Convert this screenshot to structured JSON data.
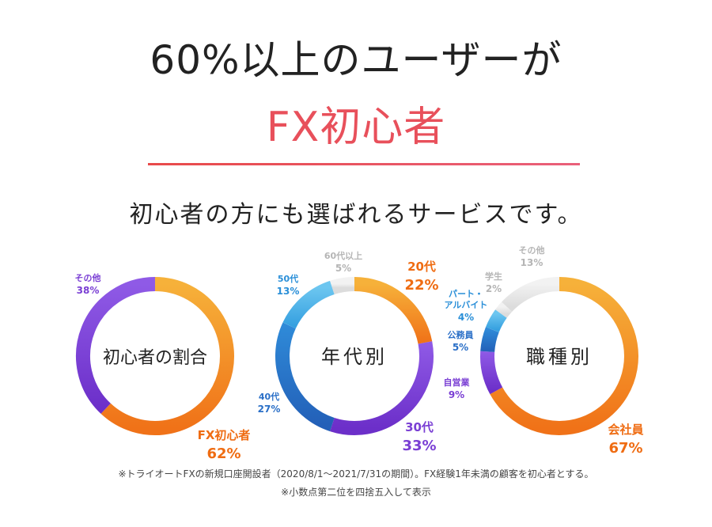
{
  "headline": {
    "line1": "60%以上のユーザーが",
    "line2": "FX初心者",
    "subtitle": "初心者の方にも選ばれるサービスです。"
  },
  "colors": {
    "accent_red": "#e8505b",
    "orange": "#f07b1c",
    "purple": "#7d3ed6",
    "blue": "#2a6fc7",
    "lightblue": "#3fa9e5",
    "lightgray": "#e5e5e5"
  },
  "chart_data": [
    {
      "type": "pie",
      "variant": "donut",
      "center_label": "初心者の割合",
      "slices": [
        {
          "label": "FX初心者",
          "value": 62,
          "display": "62%",
          "color": "orange"
        },
        {
          "label": "その他",
          "value": 38,
          "display": "38%",
          "color": "purple"
        }
      ]
    },
    {
      "type": "pie",
      "variant": "donut",
      "center_label": "年代別",
      "slices": [
        {
          "label": "20代",
          "value": 22,
          "display": "22%",
          "color": "orange"
        },
        {
          "label": "30代",
          "value": 33,
          "display": "33%",
          "color": "purple"
        },
        {
          "label": "40代",
          "value": 27,
          "display": "27%",
          "color": "blue"
        },
        {
          "label": "50代",
          "value": 13,
          "display": "13%",
          "color": "lightblue"
        },
        {
          "label": "60代以上",
          "value": 5,
          "display": "5%",
          "color": "lightgray"
        }
      ]
    },
    {
      "type": "pie",
      "variant": "donut",
      "center_label": "職種別",
      "slices": [
        {
          "label": "会社員",
          "value": 67,
          "display": "67%",
          "color": "orange"
        },
        {
          "label": "自営業",
          "value": 9,
          "display": "9%",
          "color": "purple"
        },
        {
          "label": "公務員",
          "value": 5,
          "display": "5%",
          "color": "blue"
        },
        {
          "label": "パート・\nアルバイト",
          "value": 4,
          "display": "4%",
          "color": "lightblue"
        },
        {
          "label": "学生",
          "value": 2,
          "display": "2%",
          "color": "lightgray"
        },
        {
          "label": "その他",
          "value": 13,
          "display": "13%",
          "color": "lightgray"
        }
      ]
    }
  ],
  "notes": {
    "line1": "※トライオートFXの新規口座開設者（2020/8/1～2021/7/31の期間）。FX経験1年未満の顧客を初心者とする。",
    "line2": "※小数点第二位を四捨五入して表示"
  }
}
